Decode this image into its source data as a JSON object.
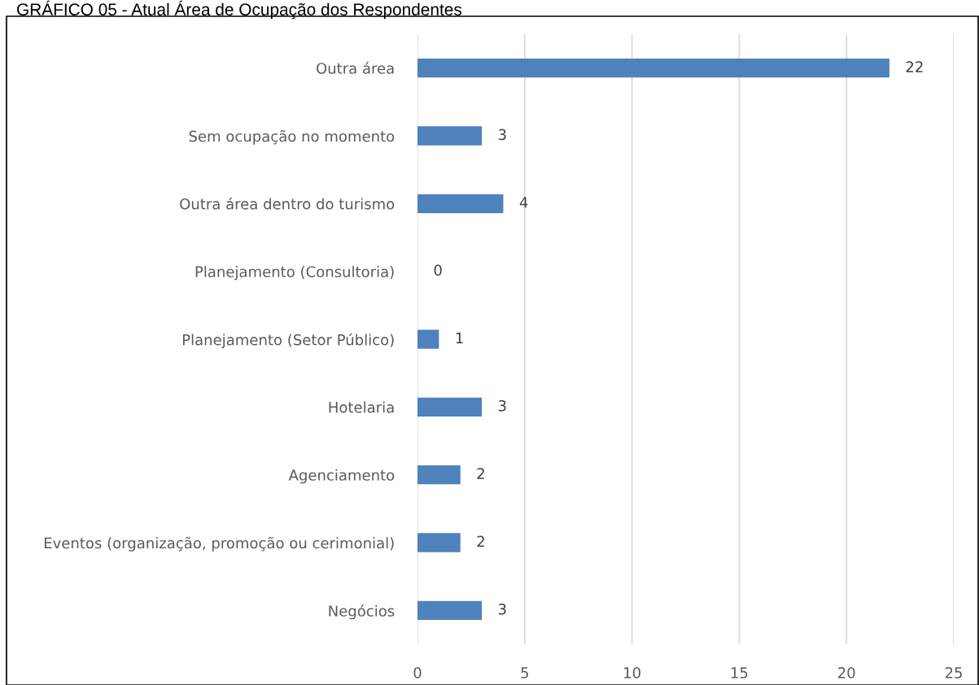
{
  "chart_data": {
    "type": "bar",
    "orientation": "horizontal",
    "title": "GRÁFICO 05 - Atual Área de Ocupação dos Respondentes",
    "categories": [
      "Outra área",
      "Sem ocupação no momento",
      "Outra área dentro do turismo",
      "Planejamento (Consultoria)",
      "Planejamento (Setor Público)",
      "Hotelaria",
      "Agenciamento",
      "Eventos (organização, promoção ou cerimonial)",
      "Negócios"
    ],
    "values": [
      22,
      3,
      4,
      0,
      1,
      3,
      2,
      2,
      3
    ],
    "color": "#4f81bd",
    "xlim": [
      0,
      25
    ],
    "xticks": [
      0,
      5,
      10,
      15,
      20,
      25
    ],
    "grid": "x",
    "data_labels": true
  }
}
